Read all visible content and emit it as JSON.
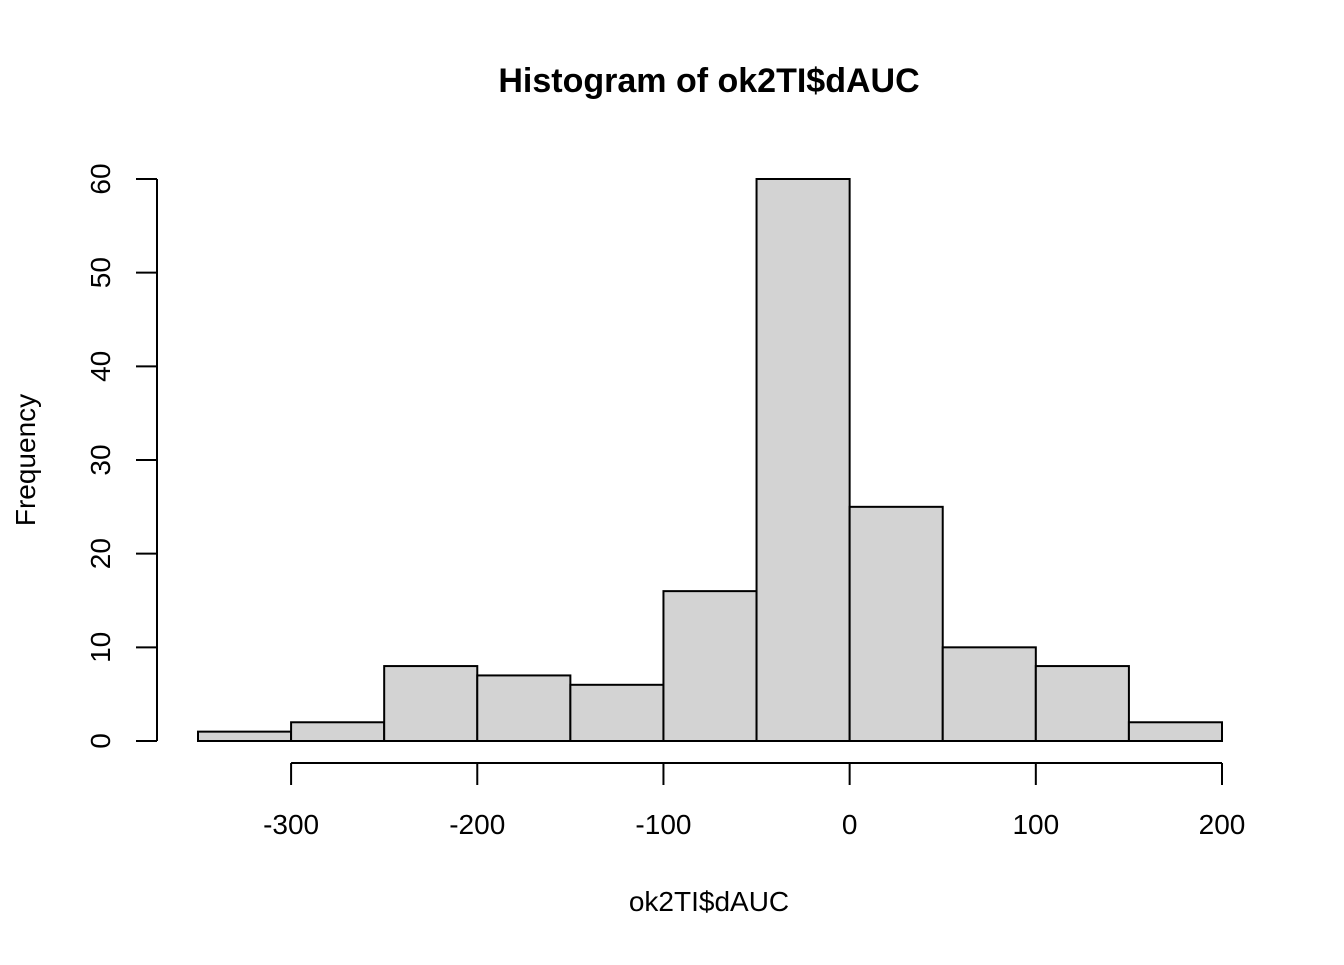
{
  "chart_data": {
    "type": "bar",
    "title": "Histogram of ok2TI$dAUC",
    "xlabel": "ok2TI$dAUC",
    "ylabel": "Frequency",
    "bin_edges": [
      -350,
      -300,
      -250,
      -200,
      -150,
      -100,
      -50,
      0,
      50,
      100,
      150,
      200
    ],
    "values": [
      1,
      2,
      8,
      7,
      6,
      16,
      60,
      25,
      10,
      8,
      2
    ],
    "xlim": [
      -350,
      200
    ],
    "ylim": [
      0,
      60
    ],
    "x_ticks": [
      -300,
      -200,
      -100,
      0,
      100,
      200
    ],
    "x_tick_labels": [
      "-300",
      "-200",
      "-100",
      "0",
      "100",
      "200"
    ],
    "y_ticks": [
      0,
      10,
      20,
      30,
      40,
      50,
      60
    ],
    "y_tick_labels": [
      "0",
      "10",
      "20",
      "30",
      "40",
      "50",
      "60"
    ],
    "grid": false,
    "bar_color": "#d3d3d3",
    "edge_color": "#000000"
  }
}
